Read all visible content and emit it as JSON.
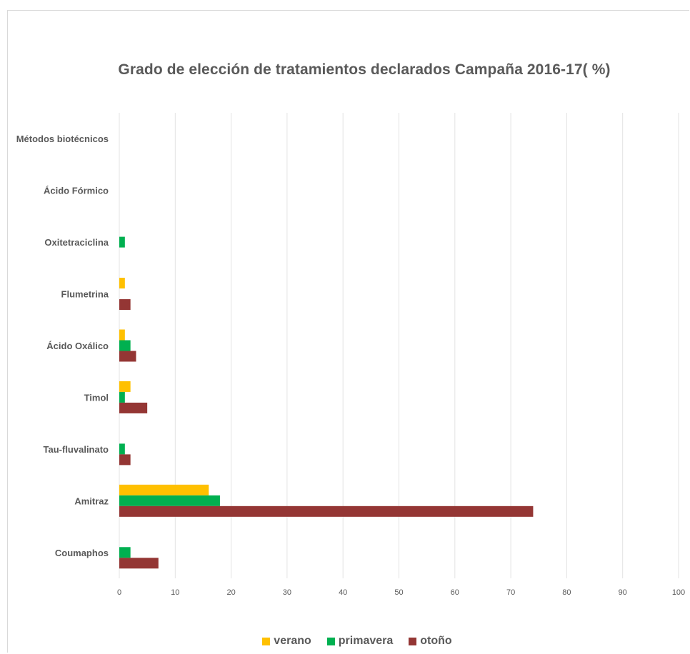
{
  "chart_data": {
    "type": "bar",
    "orientation": "horizontal",
    "title": "Grado de elección de tratamientos declarados  Campaña 2016-17( %)",
    "categories": [
      "Coumaphos",
      "Amitraz",
      "Tau-fluvalinato",
      "Timol",
      "Ácido Oxálico",
      "Flumetrina",
      "Oxitetraciclina",
      "Ácido Fórmico",
      "Métodos biotécnicos"
    ],
    "series": [
      {
        "name": "verano",
        "color": "#FFC000",
        "values": [
          0,
          16,
          0,
          2,
          1,
          1,
          0,
          0,
          0
        ]
      },
      {
        "name": "primavera",
        "color": "#00B050",
        "values": [
          2,
          18,
          1,
          1,
          2,
          0,
          1,
          0,
          0
        ]
      },
      {
        "name": "otoño",
        "color": "#943634",
        "values": [
          7,
          74,
          2,
          5,
          3,
          2,
          0,
          0,
          0
        ]
      }
    ],
    "xlim": [
      0,
      100
    ],
    "xticks": [
      "0",
      "10",
      "20",
      "30",
      "40",
      "50",
      "60",
      "70",
      "80",
      "90",
      "100"
    ],
    "grid": true,
    "legend_position": "bottom"
  }
}
